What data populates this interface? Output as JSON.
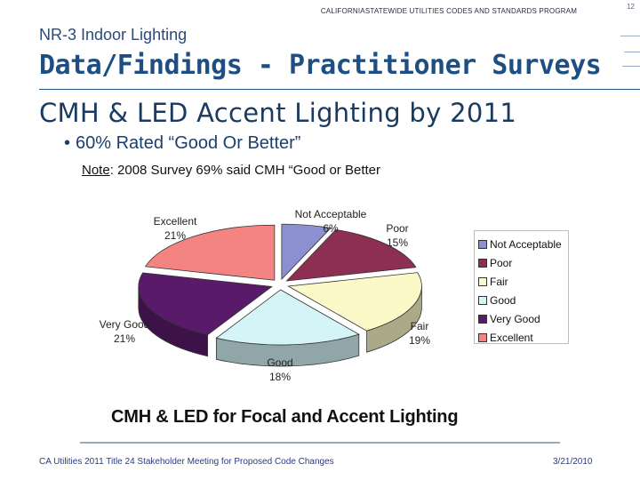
{
  "header": {
    "program": "CALIFORNIASTATEWIDE UTILITIES CODES AND STANDARDS PROGRAM",
    "slide_number": "12"
  },
  "slide": {
    "section": "NR-3 Indoor Lighting",
    "title": "Data/Findings - Practitioner Surveys",
    "subtitle": "CMH & LED Accent Lighting by 2011",
    "bullet": "60% Rated “Good Or Better”",
    "note_label": "Note",
    "note_text": ": 2008 Survey 69% said CMH “Good or Better"
  },
  "colors": {
    "title": "#1e4f82",
    "footer_text": "#2a3a8a"
  },
  "chart_data": {
    "type": "pie",
    "title": "CMH & LED for Focal and Accent Lighting",
    "legend_position": "right",
    "slices": [
      {
        "label": "Not Acceptable",
        "value": 6,
        "display": "6%",
        "color": "#8c8fd0"
      },
      {
        "label": "Poor",
        "value": 15,
        "display": "15%",
        "color": "#8d2f52"
      },
      {
        "label": "Fair",
        "value": 19,
        "display": "19%",
        "color": "#fbf9c8"
      },
      {
        "label": "Good",
        "value": 18,
        "display": "18%",
        "color": "#d5f4f7"
      },
      {
        "label": "Very Good",
        "value": 21,
        "display": "21%",
        "color": "#5a1a6a"
      },
      {
        "label": "Excellent",
        "value": 21,
        "display": "21%",
        "color": "#f48482"
      }
    ]
  },
  "footer": {
    "left": "CA Utilities 2011 Title 24 Stakeholder Meeting for Proposed Code Changes",
    "right": "3/21/2010"
  }
}
